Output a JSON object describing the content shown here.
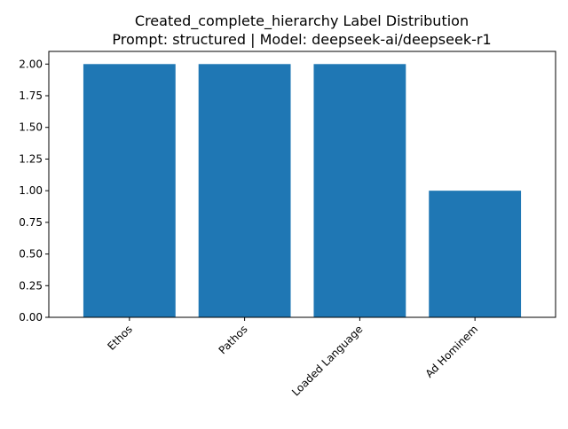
{
  "chart_data": {
    "type": "bar",
    "title_line1": "Created_complete_hierarchy Label Distribution",
    "title_line2": "Prompt: structured | Model: deepseek-ai/deepseek-r1",
    "categories": [
      "Ethos",
      "Pathos",
      "Loaded Language",
      "Ad Hominem"
    ],
    "values": [
      2,
      2,
      2,
      1
    ],
    "ylim": [
      0,
      2.1
    ],
    "yticks": [
      "0.00",
      "0.25",
      "0.50",
      "0.75",
      "1.00",
      "1.25",
      "1.50",
      "1.75",
      "2.00"
    ],
    "bar_color": "#1f77b4",
    "grid": false,
    "xlabel": "",
    "ylabel": ""
  }
}
